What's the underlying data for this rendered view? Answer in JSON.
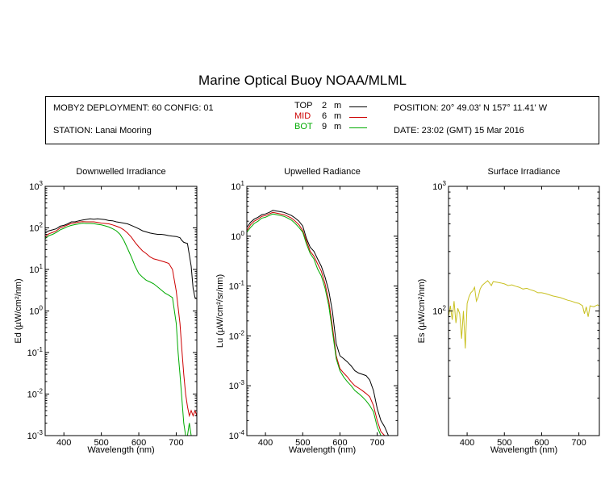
{
  "title": "Marine Optical Buoy NOAA/MLML",
  "info": {
    "deployment": "MOBY2 DEPLOYMENT: 60 CONFIG: 01",
    "station": "STATION: Lanai Mooring",
    "position": "POSITION: 20° 49.03' N   157° 11.41' W",
    "date": "DATE: 23:02 (GMT) 15 Mar 2016",
    "legend": [
      {
        "name": "TOP",
        "depth": "2",
        "unit": "m",
        "color": "#000000"
      },
      {
        "name": "MID",
        "depth": "6",
        "unit": "m",
        "color": "#cc0000"
      },
      {
        "name": "BOT",
        "depth": "9",
        "unit": "m",
        "color": "#00aa00"
      }
    ]
  },
  "chart_data": [
    {
      "type": "line",
      "title": "Downwelled Irradiance",
      "xlabel": "Wavelength (nm)",
      "ylabel": "Ed  (µW/cm²/nm)",
      "xlim": [
        350,
        755
      ],
      "ylim": [
        0.001,
        1000
      ],
      "yscale": "log",
      "xticks": [
        "400",
        "500",
        "600",
        "700"
      ],
      "yticks": [
        {
          "base": "10",
          "exp": "3"
        },
        {
          "base": "10",
          "exp": "2"
        },
        {
          "base": "10",
          "exp": "1"
        },
        {
          "base": "10",
          "exp": "0"
        },
        {
          "base": "10",
          "exp": "-1"
        },
        {
          "base": "10",
          "exp": "-2"
        },
        {
          "base": "10",
          "exp": "-3"
        }
      ],
      "series": [
        {
          "name": "TOP",
          "color": "#000000",
          "x": [
            350,
            360,
            370,
            380,
            390,
            400,
            410,
            420,
            430,
            440,
            450,
            460,
            470,
            480,
            490,
            500,
            510,
            520,
            530,
            540,
            550,
            560,
            570,
            580,
            590,
            600,
            610,
            620,
            630,
            640,
            650,
            660,
            670,
            680,
            690,
            700,
            710,
            715,
            720,
            730,
            740,
            745,
            750,
            755
          ],
          "y": [
            75,
            85,
            90,
            95,
            110,
            115,
            125,
            140,
            140,
            148,
            155,
            160,
            165,
            162,
            165,
            162,
            158,
            150,
            148,
            140,
            135,
            130,
            125,
            115,
            105,
            95,
            85,
            80,
            75,
            72,
            70,
            70,
            68,
            65,
            63,
            62,
            58,
            50,
            45,
            42,
            12,
            3.5,
            2.1,
            2.0
          ]
        },
        {
          "name": "MID",
          "color": "#cc0000",
          "x": [
            350,
            360,
            370,
            380,
            390,
            400,
            410,
            420,
            430,
            440,
            450,
            460,
            470,
            480,
            490,
            500,
            510,
            520,
            530,
            540,
            550,
            560,
            570,
            580,
            590,
            600,
            610,
            620,
            630,
            640,
            650,
            660,
            670,
            680,
            690,
            700,
            710,
            715,
            720,
            725,
            730,
            735,
            740,
            745,
            750,
            755
          ],
          "y": [
            62,
            72,
            78,
            85,
            100,
            108,
            118,
            128,
            132,
            138,
            142,
            140,
            140,
            140,
            135,
            130,
            128,
            125,
            118,
            110,
            102,
            90,
            75,
            60,
            45,
            35,
            28,
            24,
            20,
            18,
            17,
            16,
            15,
            14,
            10,
            3.0,
            0.5,
            0.12,
            0.03,
            0.01,
            0.005,
            0.003,
            0.004,
            0.003,
            0.004,
            0.003
          ]
        },
        {
          "name": "BOT",
          "color": "#00aa00",
          "x": [
            350,
            360,
            370,
            380,
            390,
            400,
            410,
            420,
            430,
            440,
            450,
            460,
            470,
            480,
            490,
            500,
            510,
            520,
            530,
            540,
            550,
            560,
            570,
            580,
            590,
            600,
            610,
            620,
            630,
            640,
            650,
            660,
            670,
            680,
            690,
            700,
            705,
            710,
            715,
            720,
            725,
            730,
            735,
            740,
            745,
            750,
            755
          ],
          "y": [
            55,
            65,
            70,
            78,
            90,
            98,
            108,
            115,
            120,
            125,
            130,
            128,
            128,
            126,
            122,
            118,
            112,
            105,
            95,
            85,
            70,
            50,
            32,
            20,
            12,
            8,
            6.5,
            5.5,
            5.0,
            4.5,
            3.8,
            3.2,
            2.7,
            2.4,
            2.1,
            0.5,
            0.1,
            0.03,
            0.008,
            0.002,
            0.001,
            0.001,
            0.002,
            0.001,
            0.001,
            0.001,
            0.001
          ]
        }
      ]
    },
    {
      "type": "line",
      "title": "Upwelled Radiance",
      "xlabel": "Wavelength (nm)",
      "ylabel": "Lu  (µW/cm²/sr/nm)",
      "xlim": [
        350,
        755
      ],
      "ylim": [
        0.0001,
        10
      ],
      "yscale": "log",
      "xticks": [
        "400",
        "500",
        "600",
        "700"
      ],
      "yticks": [
        {
          "base": "10",
          "exp": "1"
        },
        {
          "base": "10",
          "exp": "0"
        },
        {
          "base": "10",
          "exp": "-1"
        },
        {
          "base": "10",
          "exp": "-2"
        },
        {
          "base": "10",
          "exp": "-3"
        },
        {
          "base": "10",
          "exp": "-4"
        }
      ],
      "series": [
        {
          "name": "TOP",
          "color": "#000000",
          "x": [
            350,
            360,
            370,
            380,
            390,
            400,
            410,
            420,
            430,
            440,
            450,
            460,
            470,
            480,
            490,
            500,
            510,
            520,
            530,
            540,
            550,
            560,
            570,
            580,
            590,
            600,
            610,
            620,
            630,
            640,
            650,
            660,
            670,
            680,
            690,
            700,
            710,
            720,
            730,
            740,
            750
          ],
          "y": [
            1.5,
            1.9,
            2.2,
            2.4,
            2.7,
            2.8,
            3.0,
            3.3,
            3.2,
            3.1,
            3.0,
            2.8,
            2.6,
            2.3,
            2.0,
            1.6,
            0.9,
            0.6,
            0.5,
            0.35,
            0.25,
            0.15,
            0.08,
            0.03,
            0.007,
            0.004,
            0.0035,
            0.003,
            0.0025,
            0.002,
            0.0018,
            0.0017,
            0.0016,
            0.0013,
            0.0008,
            0.00035,
            0.0002,
            0.00015,
            0.0001,
            0.0001,
            0.0001
          ]
        },
        {
          "name": "MID",
          "color": "#cc0000",
          "x": [
            350,
            360,
            370,
            380,
            390,
            400,
            410,
            420,
            430,
            440,
            450,
            460,
            470,
            480,
            490,
            500,
            510,
            520,
            530,
            540,
            550,
            560,
            570,
            580,
            590,
            600,
            610,
            620,
            630,
            640,
            650,
            660,
            670,
            680,
            690,
            700,
            710,
            720,
            730,
            740,
            750
          ],
          "y": [
            1.3,
            1.7,
            2.0,
            2.2,
            2.5,
            2.6,
            2.8,
            3.0,
            2.9,
            2.8,
            2.7,
            2.5,
            2.3,
            2.0,
            1.7,
            1.3,
            0.8,
            0.5,
            0.4,
            0.28,
            0.2,
            0.11,
            0.05,
            0.015,
            0.004,
            0.0022,
            0.0018,
            0.0015,
            0.0012,
            0.001,
            0.0009,
            0.0008,
            0.0007,
            0.0006,
            0.0004,
            0.0002,
            0.00012,
            0.0001,
            0.0001,
            0.0001,
            0.0001
          ]
        },
        {
          "name": "BOT",
          "color": "#00aa00",
          "x": [
            350,
            360,
            370,
            380,
            390,
            400,
            410,
            420,
            430,
            440,
            450,
            460,
            470,
            480,
            490,
            500,
            510,
            520,
            530,
            540,
            550,
            560,
            570,
            580,
            590,
            600,
            610,
            620,
            630,
            640,
            650,
            660,
            670,
            680,
            690,
            700,
            710,
            720,
            730,
            740,
            750
          ],
          "y": [
            1.2,
            1.5,
            1.8,
            2.0,
            2.3,
            2.4,
            2.6,
            2.8,
            2.7,
            2.6,
            2.5,
            2.3,
            2.1,
            1.8,
            1.5,
            1.2,
            0.7,
            0.45,
            0.35,
            0.22,
            0.16,
            0.09,
            0.04,
            0.012,
            0.0035,
            0.002,
            0.0015,
            0.0012,
            0.001,
            0.0008,
            0.0007,
            0.0006,
            0.0005,
            0.0004,
            0.0003,
            0.00015,
            0.0001,
            0.0001,
            0.0001,
            0.0001,
            0.0001
          ]
        }
      ]
    },
    {
      "type": "line",
      "title": "Surface Irradiance",
      "xlabel": "Wavelength (nm)",
      "ylabel": "Es  (µW/cm²/nm)",
      "xlim": [
        350,
        755
      ],
      "ylim": [
        10,
        1000
      ],
      "yscale": "log",
      "xticks": [
        "400",
        "500",
        "600",
        "700"
      ],
      "yticks": [
        {
          "base": "10",
          "exp": "3"
        },
        {
          "base": "10",
          "exp": "2"
        }
      ],
      "series": [
        {
          "name": "Es",
          "color": "#c8c020",
          "x": [
            350,
            355,
            360,
            365,
            370,
            375,
            380,
            385,
            390,
            395,
            400,
            405,
            410,
            415,
            420,
            425,
            430,
            435,
            440,
            445,
            450,
            455,
            460,
            465,
            470,
            480,
            490,
            500,
            510,
            520,
            530,
            540,
            550,
            560,
            570,
            580,
            590,
            600,
            610,
            620,
            630,
            640,
            650,
            660,
            670,
            680,
            690,
            700,
            710,
            715,
            720,
            725,
            730,
            740,
            750,
            755
          ],
          "y": [
            90,
            110,
            85,
            120,
            80,
            105,
            95,
            60,
            100,
            50,
            115,
            130,
            140,
            145,
            155,
            120,
            130,
            150,
            160,
            165,
            170,
            175,
            168,
            160,
            172,
            170,
            168,
            165,
            160,
            162,
            158,
            155,
            150,
            152,
            148,
            145,
            140,
            140,
            138,
            135,
            132,
            130,
            128,
            125,
            122,
            120,
            117,
            115,
            110,
            95,
            108,
            90,
            110,
            108,
            112,
            110
          ]
        }
      ]
    }
  ]
}
